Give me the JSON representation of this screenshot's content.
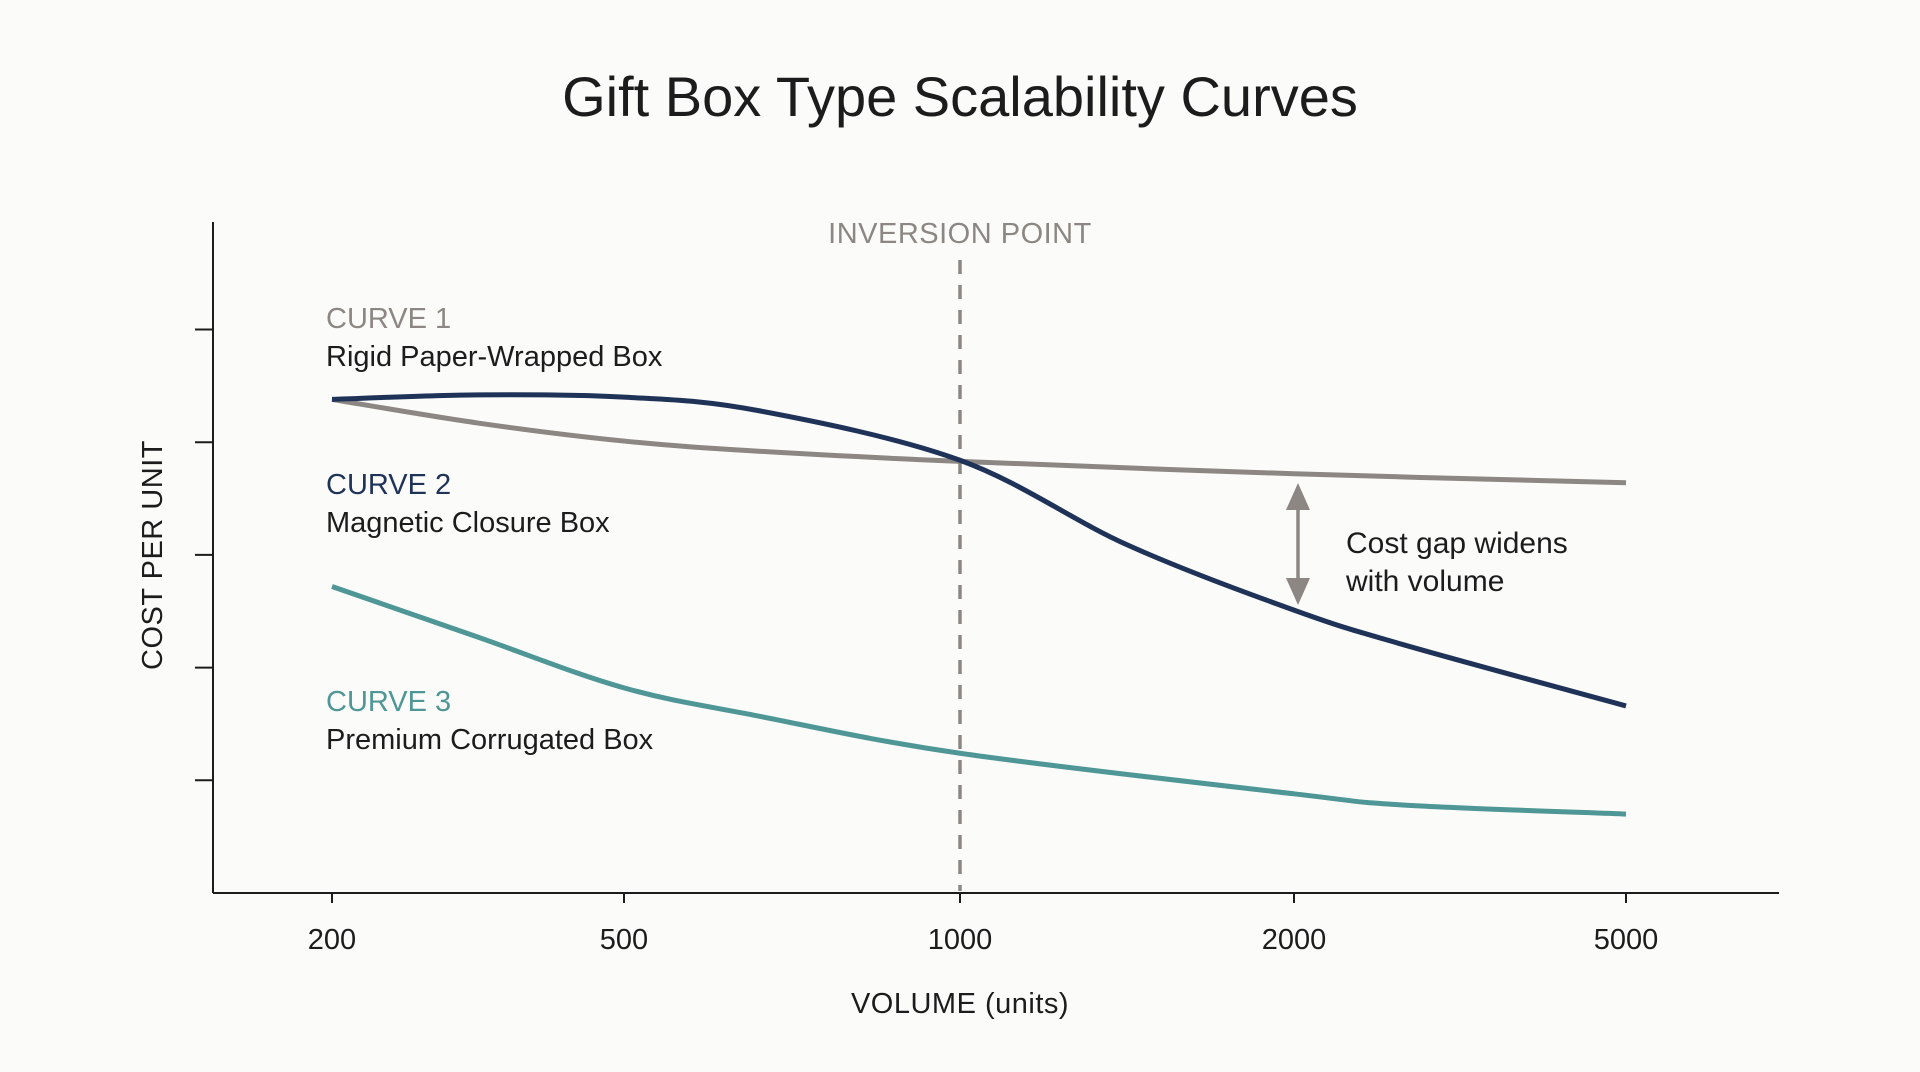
{
  "chart_data": {
    "type": "line",
    "title": "Gift Box Type Scalability Curves",
    "xlabel": "VOLUME (units)",
    "ylabel": "COST PER UNIT",
    "x_ticks": [
      200,
      500,
      1000,
      2000,
      5000
    ],
    "x_scale": "categorical-ordinal",
    "y_tick_count": 5,
    "y_tick_labels": false,
    "ylim": [
      0,
      6
    ],
    "grid": false,
    "series": [
      {
        "name": "Rigid Paper-Wrapped Box",
        "label": "CURVE 1",
        "color": "#8c8782",
        "points": [
          [
            200,
            4.38
          ],
          [
            350,
            4.17
          ],
          [
            500,
            4.01
          ],
          [
            700,
            3.92
          ],
          [
            1000,
            3.83
          ],
          [
            2000,
            3.72
          ],
          [
            5000,
            3.64
          ]
        ]
      },
      {
        "name": "Magnetic Closure Box",
        "label": "CURVE 2",
        "color": "#1f3358",
        "points": [
          [
            200,
            4.38
          ],
          [
            350,
            4.42
          ],
          [
            500,
            4.4
          ],
          [
            700,
            4.28
          ],
          [
            1000,
            3.84
          ],
          [
            1500,
            3.09
          ],
          [
            2000,
            2.51
          ],
          [
            3000,
            2.2
          ],
          [
            5000,
            1.66
          ]
        ]
      },
      {
        "name": "Premium Corrugated Box",
        "label": "CURVE 3",
        "color": "#4f9696",
        "points": [
          [
            200,
            2.72
          ],
          [
            350,
            2.27
          ],
          [
            500,
            1.82
          ],
          [
            700,
            1.57
          ],
          [
            1000,
            1.24
          ],
          [
            2000,
            0.88
          ],
          [
            3000,
            0.78
          ],
          [
            5000,
            0.7
          ]
        ]
      }
    ],
    "annotations": {
      "inversion_point": {
        "label": "INVERSION POINT",
        "x": 1000,
        "color": "#8c8782"
      },
      "gap": {
        "x": 2000,
        "lines": [
          "Cost gap widens",
          "with volume"
        ],
        "color": "#8c8782"
      }
    },
    "axis_color": "#1c1c1c"
  }
}
